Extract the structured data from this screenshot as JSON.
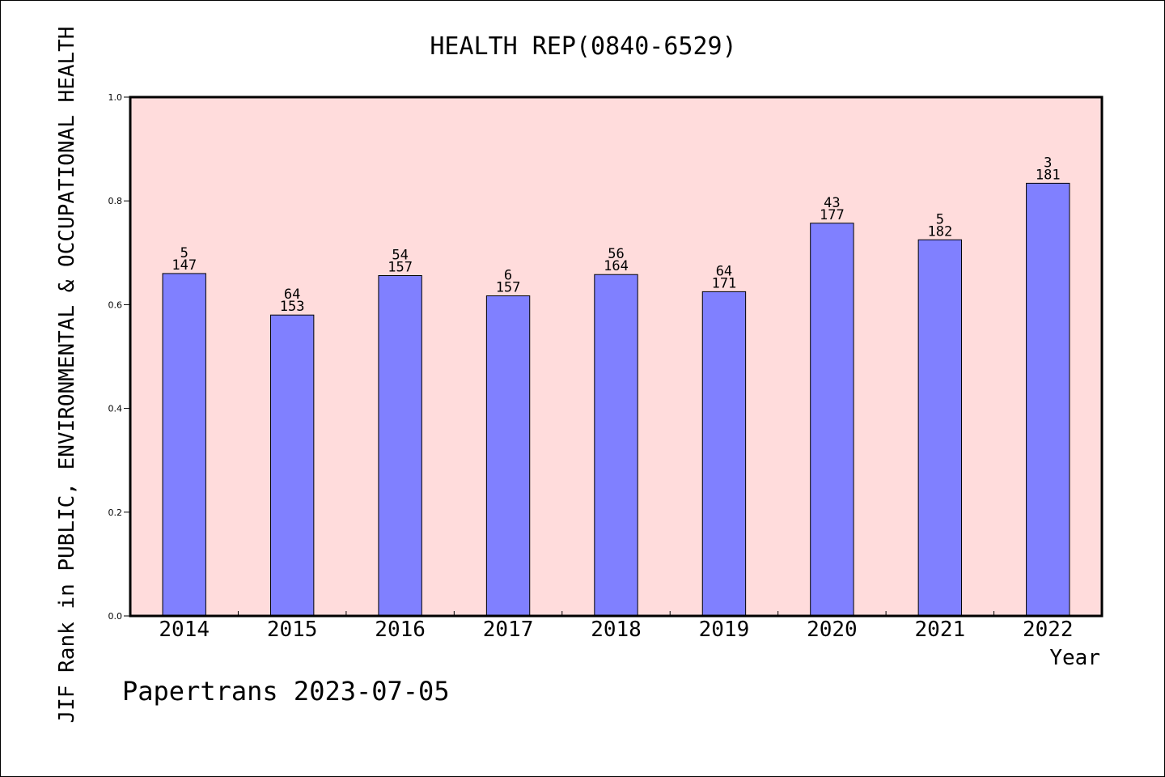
{
  "chart_data": {
    "type": "bar",
    "title": "HEALTH REP(0840-6529)",
    "xlabel": "Year",
    "ylabel": "JIF Rank in PUBLIC, ENVIRONMENTAL & OCCUPATIONAL HEALTH",
    "ylim": [
      0.0,
      1.0
    ],
    "yticks": [
      "0.0",
      "0.2",
      "0.4",
      "0.6",
      "0.8",
      "1.0"
    ],
    "categories": [
      "2014",
      "2015",
      "2016",
      "2017",
      "2018",
      "2019",
      "2020",
      "2021",
      "2022"
    ],
    "values": [
      0.66,
      0.58,
      0.656,
      0.617,
      0.658,
      0.625,
      0.757,
      0.725,
      0.834
    ],
    "bar_labels": [
      {
        "top": "5",
        "bottom": "147"
      },
      {
        "top": "64",
        "bottom": "153"
      },
      {
        "top": "54",
        "bottom": "157"
      },
      {
        "top": "6",
        "bottom": "157"
      },
      {
        "top": "56",
        "bottom": "164"
      },
      {
        "top": "64",
        "bottom": "171"
      },
      {
        "top": "43",
        "bottom": "177"
      },
      {
        "top": "5",
        "bottom": "182"
      },
      {
        "top": "3",
        "bottom": "181"
      }
    ],
    "footer": "Papertrans 2023-07-05",
    "grid": false,
    "colors": {
      "plot_background": "#ffdcdc",
      "bar_fill": "#8080ff",
      "bar_stroke": "#000000",
      "axis": "#000000",
      "text": "#000000"
    }
  }
}
